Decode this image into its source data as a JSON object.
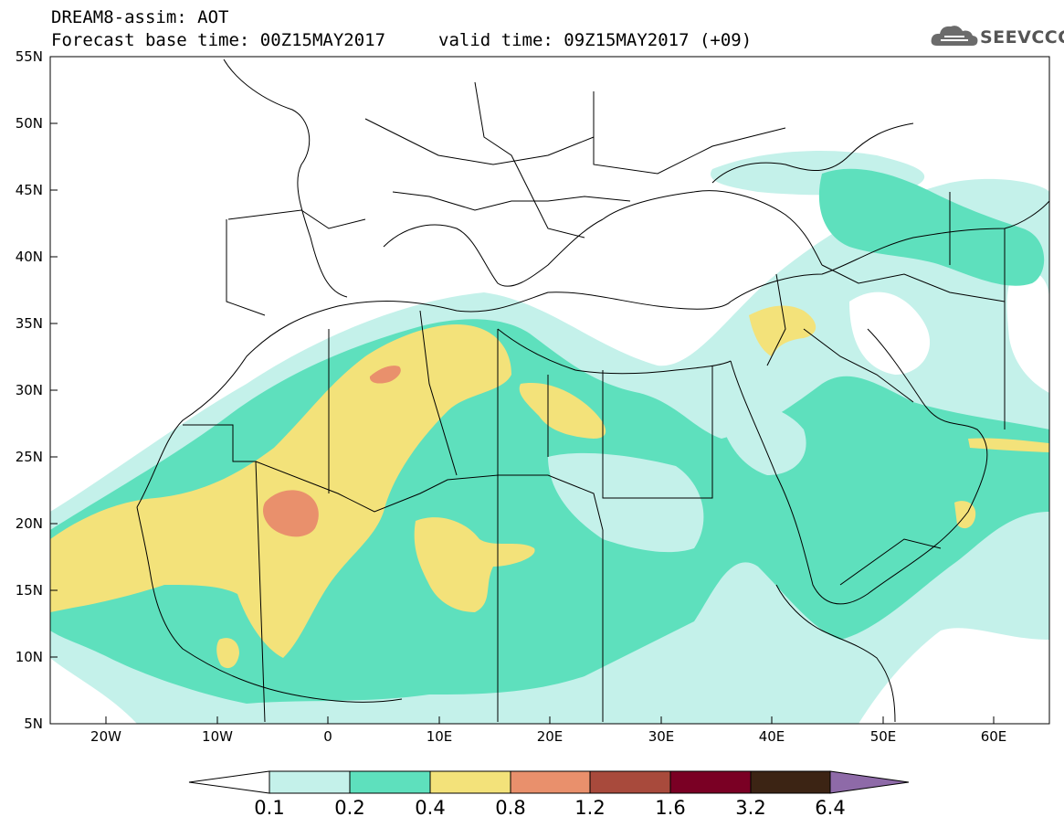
{
  "header": {
    "title": "DREAM8-assim: AOT",
    "base_time": "Forecast base time: 00Z15MAY2017",
    "valid_time": "valid time: 09Z15MAY2017 (+09)",
    "logo_text": "SEEVCCC"
  },
  "map": {
    "lon_range": [
      -25,
      65
    ],
    "lat_range": [
      5,
      55
    ],
    "x_ticks": [
      "20W",
      "10W",
      "0",
      "10E",
      "20E",
      "30E",
      "40E",
      "50E",
      "60E"
    ],
    "y_ticks": [
      "55N",
      "50N",
      "45N",
      "40N",
      "35N",
      "30N",
      "25N",
      "20N",
      "15N",
      "10N",
      "5N"
    ]
  },
  "colorbar": {
    "labels": [
      "0.1",
      "0.2",
      "0.4",
      "0.8",
      "1.2",
      "1.6",
      "3.2",
      "6.4"
    ],
    "colors": [
      "#ffffff",
      "#c4f1ea",
      "#5ee0bd",
      "#f3e27a",
      "#e9906c",
      "#a84a3c",
      "#7a0024",
      "#3c2414",
      "#8e6aa8"
    ]
  },
  "colors": {
    "level1": "#c4f1ea",
    "level2": "#5ee0bd",
    "level3": "#f3e27a",
    "level4": "#e9906c",
    "border": "#000000"
  }
}
